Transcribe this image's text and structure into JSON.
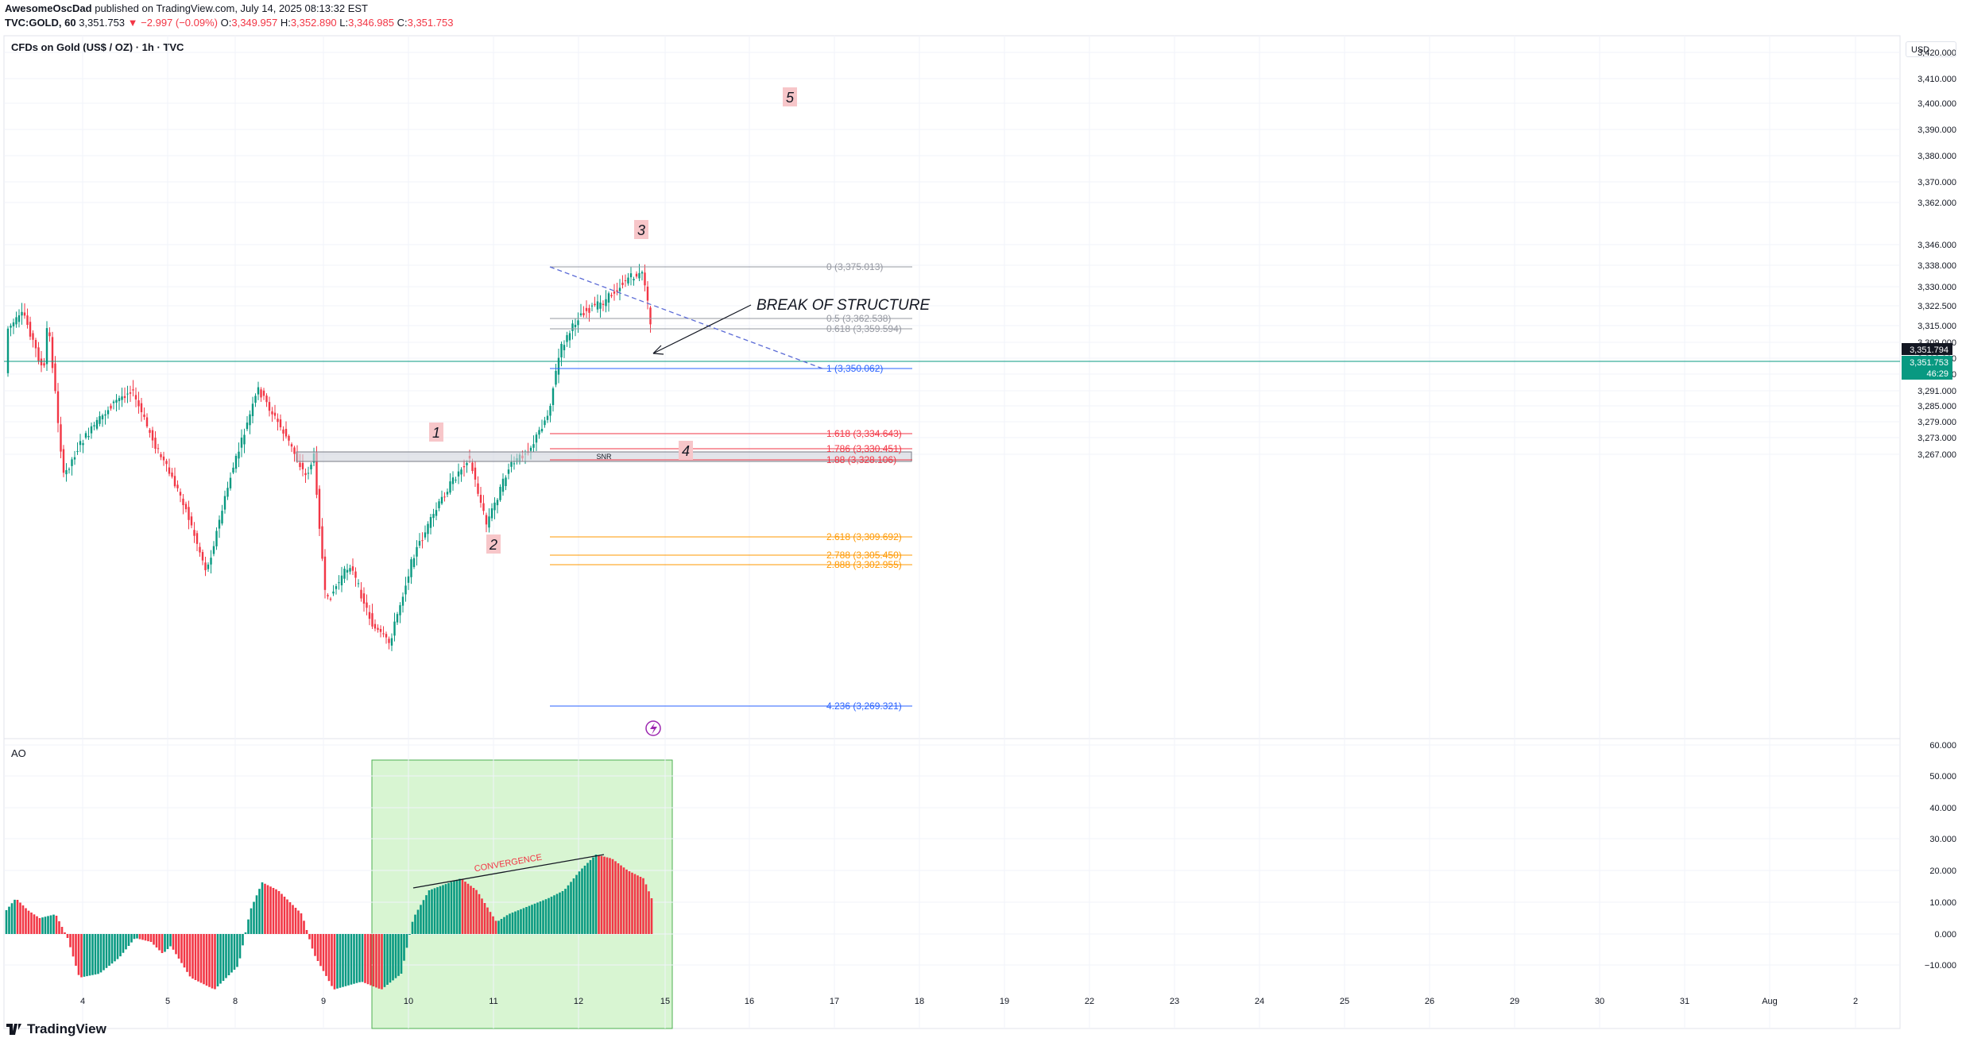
{
  "header": {
    "publisher": "AwesomeOscDad",
    "publish_text": "published on TradingView.com, July 14, 2025 08:13:32 EST",
    "symbol": "TVC:GOLD, 60",
    "last": "3,351.753",
    "change": "▼ −2.997 (−0.09%)",
    "o_label": "O:",
    "o": "3,349.957",
    "h_label": "H:",
    "h": "3,352.890",
    "l_label": "L:",
    "l": "3,346.985",
    "c_label": "C:",
    "c": "3,351.753"
  },
  "pane_title": "CFDs on Gold (US$ / OZ) · 1h · TVC",
  "currency_button": "USD",
  "price_axis": [
    "3,420.000",
    "3,410.000",
    "3,400.000",
    "3,390.000",
    "3,380.000",
    "3,370.000",
    "3,362.000",
    "3,346.000",
    "3,338.000",
    "3,330.000",
    "3,322.500",
    "3,315.000",
    "3,309.000",
    "3,303.000",
    "3,297.000",
    "3,291.000",
    "3,285.000",
    "3,279.000",
    "3,273.000",
    "3,267.000"
  ],
  "price_labels": {
    "line_price": "3,351.794",
    "last_price": "3,351.753",
    "countdown": "46:29"
  },
  "ao_title": "AO",
  "ao_axis": [
    "60.000",
    "50.000",
    "40.000",
    "30.000",
    "20.000",
    "10.000",
    "0.000",
    "−10.000"
  ],
  "time_axis": [
    "4",
    "5",
    "8",
    "9",
    "10",
    "11",
    "12",
    "15",
    "16",
    "17",
    "18",
    "19",
    "22",
    "23",
    "24",
    "25",
    "26",
    "29",
    "30",
    "31",
    "Aug",
    "2"
  ],
  "fib_levels": [
    {
      "label": "0 (3,375.013)",
      "color": "#9598a1"
    },
    {
      "label": "0.5 (3,362.538)",
      "color": "#9598a1"
    },
    {
      "label": "0.618 (3,359.594)",
      "color": "#9598a1"
    },
    {
      "label": "1 (3,350.062)",
      "color": "#2962ff"
    },
    {
      "label": "1.618 (3,334.643)",
      "color": "#f23645"
    },
    {
      "label": "1.786 (3,330.451)",
      "color": "#f23645"
    },
    {
      "label": "1.88 (3,328.106)",
      "color": "#f23645"
    },
    {
      "label": "2.618 (3,309.692)",
      "color": "#ff9800"
    },
    {
      "label": "2.788 (3,305.450)",
      "color": "#ff9800"
    },
    {
      "label": "2.888 (3,302.955)",
      "color": "#ff9800"
    },
    {
      "label": "4.236 (3,269.321)",
      "color": "#2962ff"
    }
  ],
  "annotations": {
    "break_of_structure": "BREAK OF STRUCTURE",
    "snr": "SNR",
    "convergence": "CONVERGENCE",
    "wave_labels": [
      "1",
      "2",
      "3",
      "4",
      "5"
    ]
  },
  "colors": {
    "up": "#089981",
    "down": "#f23645",
    "ao_up": "#089981",
    "ao_down": "#f23645",
    "highlight": "#d8f5d2"
  },
  "footer": {
    "brand": "TradingView"
  }
}
